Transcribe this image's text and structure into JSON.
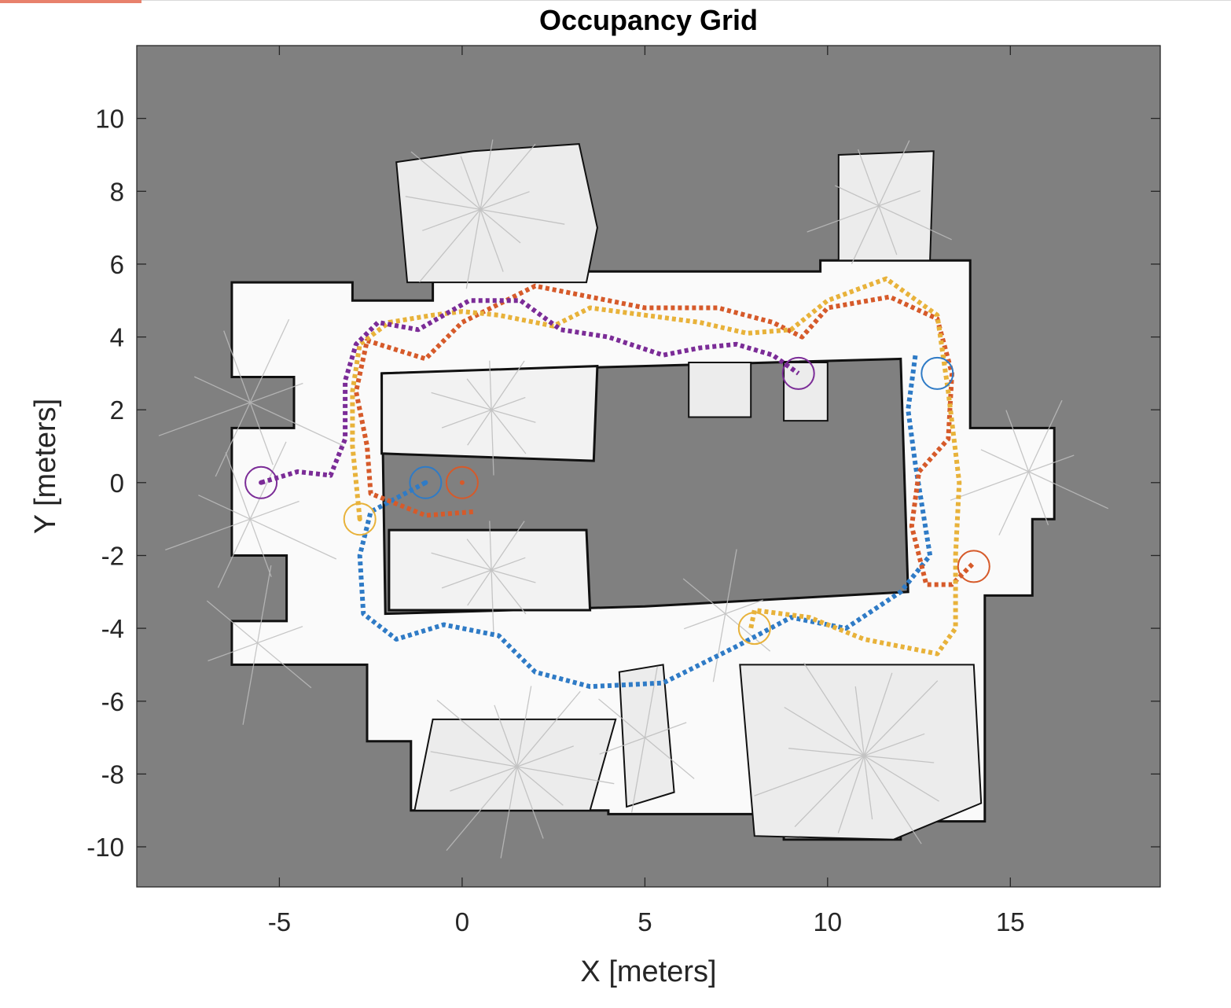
{
  "chart_data": {
    "type": "scatter",
    "title": "Occupancy Grid",
    "xlabel": "X [meters]",
    "ylabel": "Y [meters]",
    "xlim": [
      -8.9,
      19.1
    ],
    "ylim": [
      -11.1,
      12.0
    ],
    "xticks": [
      -5,
      0,
      5,
      10,
      15
    ],
    "yticks": [
      10,
      8,
      6,
      4,
      2,
      0,
      -2,
      -4,
      -6,
      -8,
      -10
    ],
    "xtick_labels": [
      "-5",
      "0",
      "5",
      "10",
      "15"
    ],
    "ytick_labels": [
      "10",
      "8",
      "6",
      "4",
      "2",
      "0",
      "-2",
      "-4",
      "-6",
      "-8",
      "-10"
    ],
    "grid": false,
    "legend": "none",
    "colors": {
      "unknown": "#808080",
      "free": "#fafafa",
      "occupied": "#111111",
      "blue": "#2f7bc6",
      "orange": "#d65a2a",
      "yellow": "#e8b23a",
      "purple": "#7b2c97"
    },
    "free_space": {
      "outer_ring": [
        [
          -6.3,
          5.5
        ],
        [
          -3.0,
          5.5
        ],
        [
          -3.0,
          5.0
        ],
        [
          -0.8,
          5.0
        ],
        [
          -0.8,
          5.8
        ],
        [
          9.8,
          5.8
        ],
        [
          9.8,
          6.1
        ],
        [
          13.9,
          6.1
        ],
        [
          13.9,
          1.5
        ],
        [
          16.2,
          1.5
        ],
        [
          16.2,
          -1.0
        ],
        [
          15.6,
          -1.0
        ],
        [
          15.6,
          -3.1
        ],
        [
          14.3,
          -3.1
        ],
        [
          14.3,
          -9.3
        ],
        [
          12.0,
          -9.3
        ],
        [
          12.0,
          -9.8
        ],
        [
          8.8,
          -9.8
        ],
        [
          8.8,
          -9.1
        ],
        [
          4.0,
          -9.1
        ],
        [
          4.0,
          -9.0
        ],
        [
          -1.4,
          -9.0
        ],
        [
          -1.4,
          -7.1
        ],
        [
          -2.6,
          -7.1
        ],
        [
          -2.6,
          -5.0
        ],
        [
          -6.3,
          -5.0
        ],
        [
          -6.3,
          -3.8
        ],
        [
          -4.8,
          -3.8
        ],
        [
          -4.8,
          -2.0
        ],
        [
          -6.3,
          -2.0
        ],
        [
          -6.3,
          1.5
        ],
        [
          -4.6,
          1.5
        ],
        [
          -4.6,
          2.9
        ],
        [
          -6.3,
          2.9
        ]
      ],
      "inner_hole": [
        [
          -2.2,
          3.0
        ],
        [
          12.0,
          3.4
        ],
        [
          12.2,
          -3.0
        ],
        [
          5.0,
          -3.4
        ],
        [
          -2.1,
          -3.6
        ]
      ],
      "lobes": [
        [
          [
            -1.5,
            5.5
          ],
          [
            -1.8,
            8.8
          ],
          [
            0.3,
            9.1
          ],
          [
            3.2,
            9.3
          ],
          [
            3.7,
            7.0
          ],
          [
            3.4,
            5.5
          ]
        ],
        [
          [
            10.3,
            6.1
          ],
          [
            10.3,
            9.0
          ],
          [
            12.9,
            9.1
          ],
          [
            12.8,
            6.1
          ]
        ],
        [
          [
            5.5,
            -5.0
          ],
          [
            5.8,
            -8.5
          ],
          [
            4.5,
            -8.9
          ],
          [
            4.3,
            -5.2
          ]
        ],
        [
          [
            7.6,
            -5.0
          ],
          [
            8.0,
            -9.7
          ],
          [
            11.8,
            -9.8
          ],
          [
            14.2,
            -8.8
          ],
          [
            14.0,
            -5.0
          ]
        ],
        [
          [
            -0.8,
            -6.5
          ],
          [
            -1.3,
            -9.0
          ],
          [
            3.5,
            -9.0
          ],
          [
            4.2,
            -6.5
          ]
        ],
        [
          [
            6.2,
            3.3
          ],
          [
            6.2,
            1.8
          ],
          [
            7.9,
            1.8
          ],
          [
            7.9,
            3.3
          ]
        ],
        [
          [
            8.8,
            3.3
          ],
          [
            8.8,
            1.7
          ],
          [
            10.0,
            1.7
          ],
          [
            10.0,
            3.3
          ]
        ]
      ],
      "rooms": [
        [
          [
            -2.2,
            3.0
          ],
          [
            3.7,
            3.2
          ],
          [
            3.6,
            0.6
          ],
          [
            -2.2,
            0.8
          ]
        ],
        [
          [
            -2.0,
            -1.3
          ],
          [
            3.4,
            -1.3
          ],
          [
            3.5,
            -3.5
          ],
          [
            -2.0,
            -3.5
          ]
        ]
      ]
    },
    "series": [
      {
        "color": "blue",
        "start": [
          -1.0,
          0.0
        ],
        "points": [
          [
            -1.0,
            0.0
          ],
          [
            -2.5,
            -0.8
          ],
          [
            -2.8,
            -2.0
          ],
          [
            -2.7,
            -3.6
          ],
          [
            -1.8,
            -4.3
          ],
          [
            -0.5,
            -3.9
          ],
          [
            1.0,
            -4.2
          ],
          [
            2.0,
            -5.2
          ],
          [
            3.5,
            -5.6
          ],
          [
            5.5,
            -5.5
          ],
          [
            7.5,
            -4.5
          ],
          [
            9.0,
            -3.7
          ],
          [
            10.5,
            -4.0
          ],
          [
            12.0,
            -3.0
          ],
          [
            12.8,
            -2.0
          ],
          [
            12.4,
            0.5
          ],
          [
            12.2,
            2.0
          ],
          [
            12.4,
            3.5
          ]
        ]
      },
      {
        "color": "orange",
        "start": [
          0.0,
          0.0
        ],
        "points": [
          [
            0.3,
            -0.8
          ],
          [
            -1.0,
            -0.9
          ],
          [
            -2.5,
            -0.3
          ],
          [
            -2.6,
            1.0
          ],
          [
            -2.9,
            2.5
          ],
          [
            -2.6,
            3.9
          ],
          [
            -1.0,
            3.4
          ],
          [
            0.0,
            4.4
          ],
          [
            2.0,
            5.4
          ],
          [
            3.5,
            5.1
          ],
          [
            5.0,
            4.8
          ],
          [
            7.0,
            4.8
          ],
          [
            8.5,
            4.4
          ],
          [
            9.3,
            4.0
          ],
          [
            10.0,
            4.8
          ],
          [
            11.7,
            5.1
          ],
          [
            13.0,
            4.5
          ],
          [
            13.4,
            3.0
          ],
          [
            13.3,
            1.2
          ],
          [
            12.5,
            0.3
          ],
          [
            12.3,
            -1.2
          ],
          [
            12.7,
            -2.8
          ],
          [
            13.4,
            -2.8
          ],
          [
            14.0,
            -2.2
          ]
        ]
      },
      {
        "color": "yellow",
        "start": [
          -2.8,
          -1.0
        ],
        "points": [
          [
            -2.8,
            -1.0
          ],
          [
            -3.0,
            1.0
          ],
          [
            -3.0,
            2.5
          ],
          [
            -2.8,
            3.8
          ],
          [
            -2.0,
            4.4
          ],
          [
            -0.8,
            4.6
          ],
          [
            0.0,
            4.7
          ],
          [
            1.0,
            4.6
          ],
          [
            2.5,
            4.3
          ],
          [
            3.5,
            4.8
          ],
          [
            5.0,
            4.6
          ],
          [
            6.5,
            4.4
          ],
          [
            7.8,
            4.1
          ],
          [
            9.0,
            4.2
          ],
          [
            10.0,
            5.0
          ],
          [
            11.6,
            5.6
          ],
          [
            13.0,
            4.6
          ],
          [
            13.3,
            2.5
          ],
          [
            13.6,
            0.0
          ],
          [
            13.5,
            -2.0
          ],
          [
            13.5,
            -4.0
          ],
          [
            13.0,
            -4.7
          ],
          [
            11.0,
            -4.3
          ],
          [
            9.5,
            -3.7
          ],
          [
            8.0,
            -3.5
          ],
          [
            7.9,
            -4.0
          ]
        ]
      },
      {
        "color": "purple",
        "start": [
          -5.5,
          0.0
        ],
        "points": [
          [
            -5.5,
            0.0
          ],
          [
            -4.5,
            0.3
          ],
          [
            -3.6,
            0.2
          ],
          [
            -3.2,
            1.2
          ],
          [
            -3.2,
            2.8
          ],
          [
            -2.9,
            3.8
          ],
          [
            -2.3,
            4.4
          ],
          [
            -1.2,
            4.2
          ],
          [
            0.2,
            5.0
          ],
          [
            1.6,
            5.0
          ],
          [
            2.7,
            4.2
          ],
          [
            4.0,
            4.0
          ],
          [
            5.5,
            3.5
          ],
          [
            6.5,
            3.7
          ],
          [
            7.5,
            3.8
          ],
          [
            8.5,
            3.5
          ],
          [
            9.2,
            3.0
          ]
        ]
      }
    ],
    "goals": [
      {
        "color": "blue",
        "x": 13.0,
        "y": 3.0
      },
      {
        "color": "orange",
        "x": 14.0,
        "y": -2.3
      },
      {
        "color": "yellow",
        "x": 8.0,
        "y": -4.0
      },
      {
        "color": "purple",
        "x": 9.2,
        "y": 3.0
      }
    ]
  }
}
